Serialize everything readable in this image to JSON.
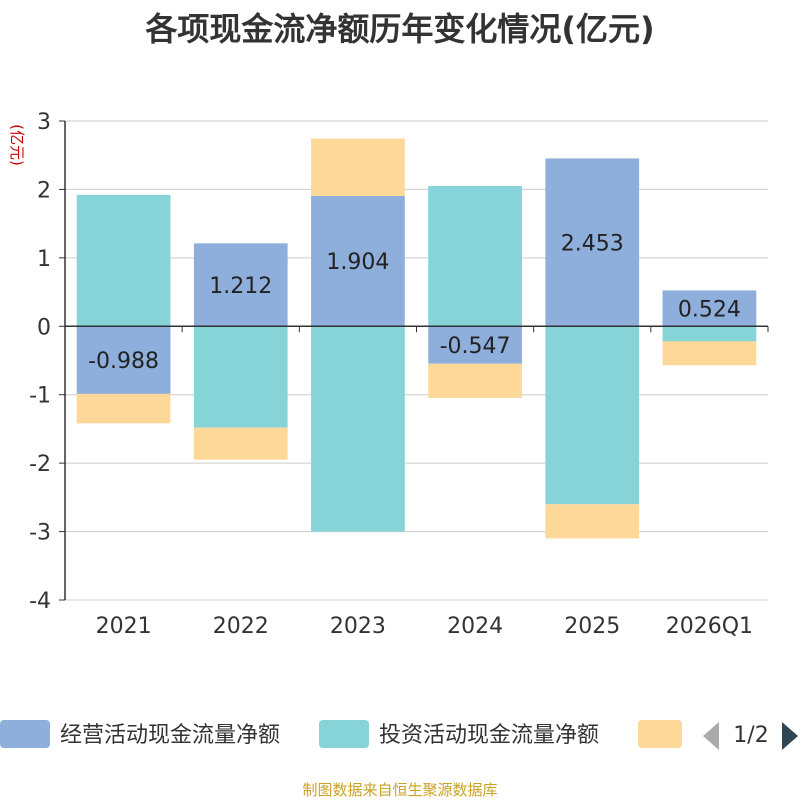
{
  "chart_data": {
    "type": "bar",
    "stacked": true,
    "title": "各项现金流净额历年变化情况(亿元)",
    "ylabel": "(亿元)",
    "xlabel": "",
    "ylim": [
      -4,
      3
    ],
    "yticks": [
      3,
      2,
      1,
      0,
      -1,
      -2,
      -3,
      -4
    ],
    "grid": true,
    "categories": [
      "2021",
      "2022",
      "2023",
      "2024",
      "2025",
      "2026Q1"
    ],
    "series": [
      {
        "name": "经营活动现金流量净额",
        "color": "#8eaedb",
        "values": [
          -0.988,
          1.212,
          1.904,
          -0.547,
          2.453,
          0.524
        ]
      },
      {
        "name": "投资活动现金流量净额",
        "color": "#86d4d8",
        "values": [
          1.92,
          -1.48,
          -3.0,
          2.05,
          -2.6,
          -0.22
        ]
      },
      {
        "name": "",
        "color": "#fdd899",
        "values": [
          -0.43,
          -0.47,
          0.84,
          -0.5,
          -0.5,
          -0.35
        ]
      }
    ],
    "data_labels": [
      "-0.988",
      "1.212",
      "1.904",
      "-0.547",
      "2.453",
      "0.524"
    ],
    "legend": {
      "position": "bottom",
      "page": "1/2"
    }
  },
  "source_note": "制图数据来自恒生聚源数据库"
}
